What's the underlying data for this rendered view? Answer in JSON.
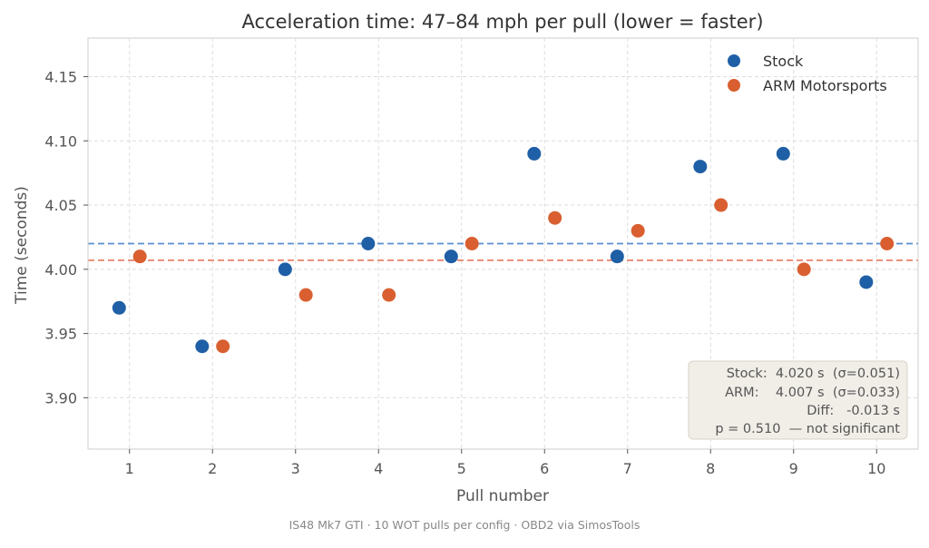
{
  "chart_data": {
    "type": "scatter",
    "title": "Acceleration time: 47–84 mph per pull  (lower = faster)",
    "xlabel": "Pull number",
    "ylabel": "Time (seconds)",
    "footer": "IS48 Mk7 GTI · 10 WOT pulls per config · OBD2 via SimosTools",
    "xlim": [
      0.5,
      10.5
    ],
    "ylim": [
      3.86,
      4.18
    ],
    "xticks": [
      1,
      2,
      3,
      4,
      5,
      6,
      7,
      8,
      9,
      10
    ],
    "yticks": [
      3.9,
      3.95,
      4.0,
      4.05,
      4.1,
      4.15
    ],
    "ytick_labels": [
      "3.90",
      "3.95",
      "4.00",
      "4.05",
      "4.10",
      "4.15"
    ],
    "grid": true,
    "legend_position": "top-right",
    "series": [
      {
        "name": "Stock",
        "color": "#1f5fa6",
        "mean_line_color": "#5b8fd0",
        "x_offset": -0.125,
        "x": [
          1,
          2,
          3,
          4,
          5,
          6,
          7,
          8,
          9,
          10
        ],
        "values": [
          3.97,
          3.94,
          4.0,
          4.02,
          4.01,
          4.09,
          4.01,
          4.08,
          4.09,
          3.99
        ],
        "mean": 4.02
      },
      {
        "name": "ARM Motorsports",
        "color": "#d95f30",
        "mean_line_color": "#e8826a",
        "x_offset": 0.125,
        "x": [
          1,
          2,
          3,
          4,
          5,
          6,
          7,
          8,
          9,
          10
        ],
        "values": [
          4.01,
          3.94,
          3.98,
          3.98,
          4.02,
          4.04,
          4.03,
          4.05,
          4.0,
          4.02
        ],
        "mean": 4.007
      }
    ],
    "stats_box": [
      "Stock:  4.020 s  (σ=0.051)",
      "ARM:    4.007 s  (σ=0.033)",
      "Diff:   -0.013 s",
      "p = 0.510  — not significant"
    ]
  }
}
